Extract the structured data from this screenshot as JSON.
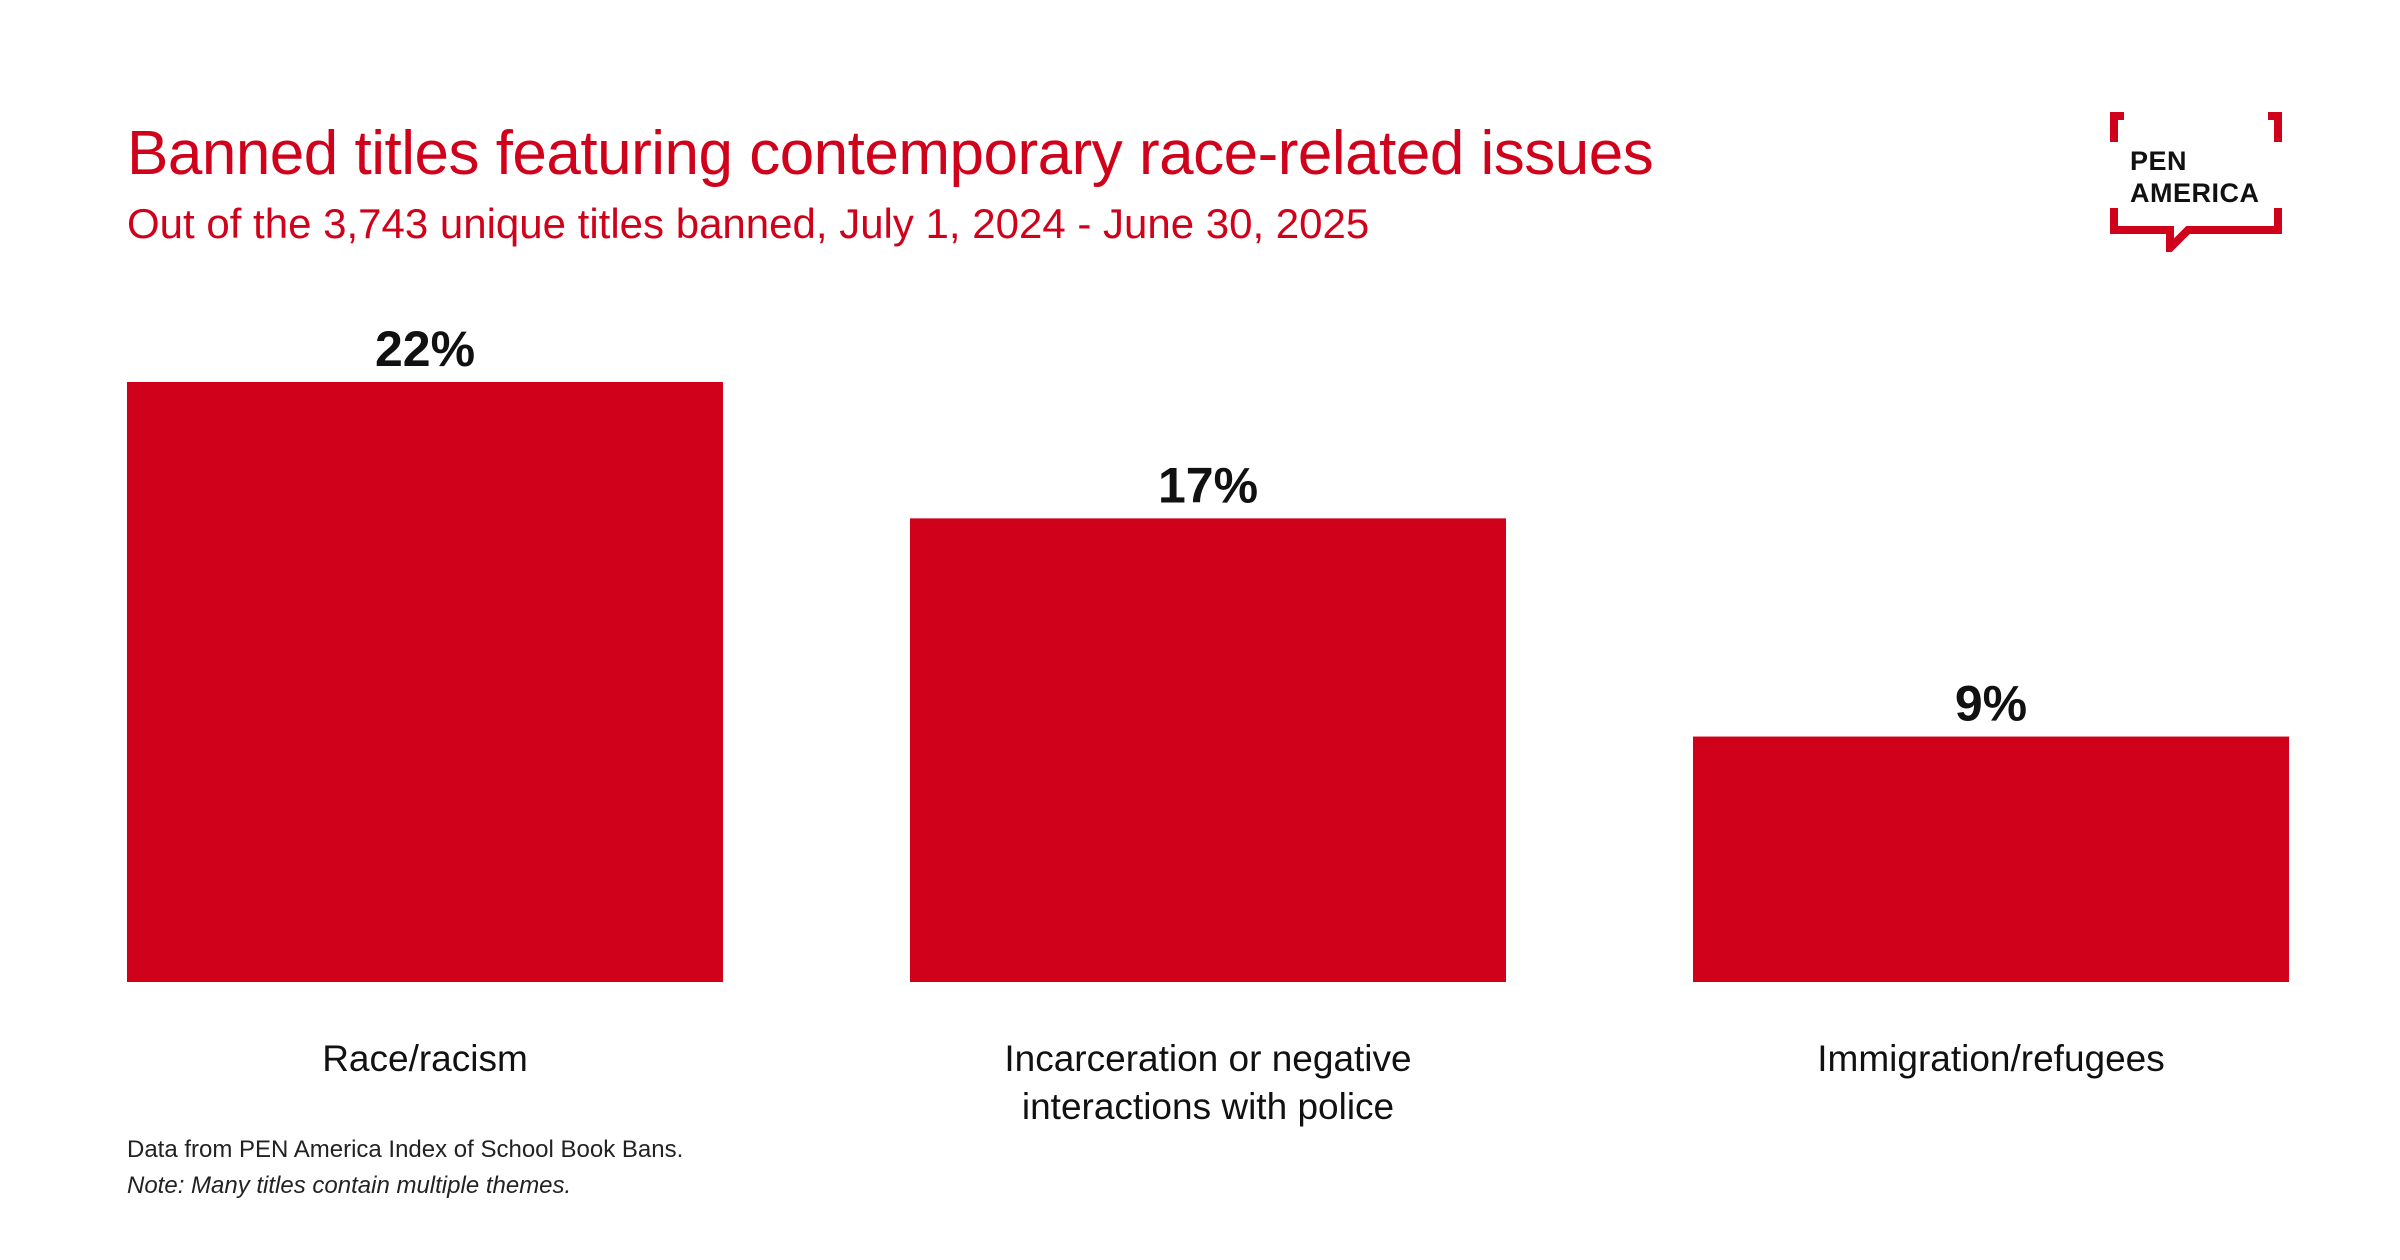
{
  "header": {
    "title": "Banned titles featuring contemporary race-related issues",
    "subtitle": "Out of the 3,743 unique titles banned, July 1, 2024 - June 30, 2025"
  },
  "logo": {
    "line1": "PEN",
    "line2": "AMERICA",
    "icon": "speech-bubble-frame-icon"
  },
  "colors": {
    "accent": "#d0021b",
    "bar": "#d0021b",
    "label": "#111111"
  },
  "chart_data": {
    "type": "bar",
    "title": "Banned titles featuring contemporary race-related issues",
    "subtitle": "Out of the 3,743 unique titles banned, July 1, 2024 - June 30, 2025",
    "categories": [
      [
        "Race/racism"
      ],
      [
        "Incarceration or negative",
        "interactions with police"
      ],
      [
        "Immigration/refugees"
      ]
    ],
    "values": [
      22,
      17,
      9
    ],
    "value_labels": [
      "22%",
      "17%",
      "9%"
    ],
    "unit": "%",
    "xlabel": "",
    "ylabel": "",
    "ylim": [
      0,
      22
    ],
    "grid": false,
    "legend": "none"
  },
  "footer": {
    "source": "Data from PEN America Index of School Book Bans.",
    "note": "Note: Many titles contain multiple themes."
  }
}
